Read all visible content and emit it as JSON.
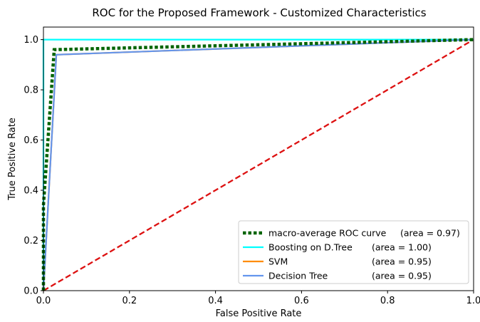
{
  "chart_data": {
    "type": "line",
    "title": "ROC for the Proposed Framework - Customized Characteristics",
    "xlabel": "False Positive Rate",
    "ylabel": "True Positive Rate",
    "xlim": [
      0.0,
      1.0
    ],
    "ylim": [
      0.0,
      1.05
    ],
    "xticks": [
      "0.0",
      "0.2",
      "0.4",
      "0.6",
      "0.8",
      "1.0"
    ],
    "yticks": [
      "0.0",
      "0.2",
      "0.4",
      "0.6",
      "0.8",
      "1.0"
    ],
    "grid": false,
    "legend_position": "lower-right",
    "series": [
      {
        "name": "macro-average ROC curve",
        "area_label": "(area = 0.97)",
        "color": "#006400",
        "style": "dotted",
        "x": [
          0.0,
          0.0,
          0.025,
          1.0
        ],
        "y": [
          0.0,
          0.34,
          0.96,
          1.0
        ]
      },
      {
        "name": "Boosting on D.Tree",
        "area_label": "(area = 1.00)",
        "color": "#00ffff",
        "style": "solid",
        "x": [
          0.0,
          0.0,
          1.0
        ],
        "y": [
          0.0,
          1.0,
          1.0
        ]
      },
      {
        "name": "SVM",
        "area_label": "(area = 0.95)",
        "color": "#ff8c00",
        "style": "solid",
        "x": [
          0.0,
          0.03,
          1.0
        ],
        "y": [
          0.0,
          0.94,
          1.0
        ]
      },
      {
        "name": "Decision Tree",
        "area_label": "(area = 0.95)",
        "color": "#6495ed",
        "style": "solid",
        "x": [
          0.0,
          0.03,
          1.0
        ],
        "y": [
          0.0,
          0.94,
          1.0
        ]
      },
      {
        "name": "",
        "color": "#dd1111",
        "style": "dashed",
        "x": [
          0.0,
          1.0
        ],
        "y": [
          0.0,
          1.0
        ]
      }
    ]
  }
}
